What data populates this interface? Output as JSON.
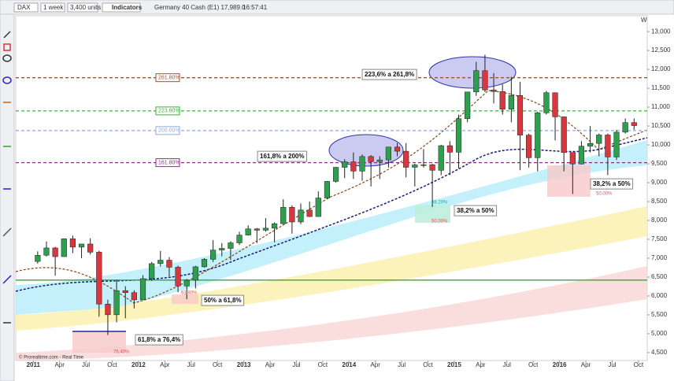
{
  "toolbar": {
    "symbol": "DAX",
    "period": "1 week",
    "units": "3,400 units",
    "indicators": "Indicators",
    "instrument": "Germany 40 Cash (E1) 17,989.0",
    "time": "16:57:41",
    "scale_mode": "W"
  },
  "watermark": "© Prorealtime.com - Real Time",
  "chart_data": {
    "type": "candlestick",
    "x": [
      "2011-01",
      "2011-02",
      "2011-03",
      "2011-04",
      "2011-05",
      "2011-06",
      "2011-07",
      "2011-08",
      "2011-09",
      "2011-10",
      "2011-11",
      "2011-12",
      "2012-01",
      "2012-02",
      "2012-03",
      "2012-04",
      "2012-05",
      "2012-06",
      "2012-07",
      "2012-08",
      "2012-09",
      "2012-10",
      "2012-11",
      "2012-12",
      "2013-01",
      "2013-02",
      "2013-03",
      "2013-04",
      "2013-05",
      "2013-06",
      "2013-07",
      "2013-08",
      "2013-09",
      "2013-10",
      "2013-11",
      "2013-12",
      "2014-01",
      "2014-02",
      "2014-03",
      "2014-04",
      "2014-05",
      "2014-06",
      "2014-07",
      "2014-08",
      "2014-09",
      "2014-10",
      "2014-11",
      "2014-12",
      "2015-01",
      "2015-02",
      "2015-03",
      "2015-04",
      "2015-05",
      "2015-06",
      "2015-07",
      "2015-08",
      "2015-09",
      "2015-10",
      "2015-11",
      "2015-12",
      "2016-01",
      "2016-02",
      "2016-03",
      "2016-04",
      "2016-05",
      "2016-06",
      "2016-07",
      "2016-08",
      "2016-09"
    ],
    "open": [
      6914,
      7077,
      7272,
      7041,
      7514,
      7293,
      7376,
      7159,
      5785,
      5502,
      6141,
      6088,
      5898,
      6458,
      6856,
      6947,
      6761,
      6264,
      6416,
      6772,
      6970,
      7216,
      7260,
      7406,
      7612,
      7776,
      7741,
      7795,
      7914,
      8348,
      7959,
      8276,
      8103,
      8594,
      9033,
      9406,
      9552,
      9306,
      9692,
      9556,
      9603,
      9943,
      9833,
      9407,
      9470,
      9474,
      9327,
      9980,
      9806,
      10694,
      11402,
      11966,
      11454,
      11413,
      10945,
      11309,
      10259,
      9660,
      10850,
      11382,
      10743,
      9798,
      9495,
      9966,
      10039,
      10263,
      9680,
      10337,
      10592
    ],
    "high": [
      7180,
      7441,
      7300,
      7527,
      7600,
      7350,
      7527,
      7200,
      5900,
      6430,
      6260,
      6150,
      6550,
      6900,
      7194,
      7030,
      6800,
      6450,
      6800,
      7000,
      7478,
      7400,
      7450,
      7700,
      7870,
      7800,
      8060,
      7950,
      8560,
      8400,
      8450,
      8500,
      8770,
      9040,
      9420,
      9620,
      9800,
      9750,
      9730,
      9700,
      9950,
      10050,
      10050,
      9500,
      9890,
      9500,
      10000,
      10100,
      10800,
      11400,
      12200,
      12390,
      11900,
      11600,
      11800,
      11670,
      10300,
      10880,
      11430,
      11300,
      10750,
      9800,
      10100,
      10500,
      10300,
      10300,
      10400,
      10700,
      10700
    ],
    "low": [
      6856,
      7046,
      6536,
      7041,
      7132,
      7000,
      7100,
      5450,
      4965,
      5300,
      5410,
      5670,
      5900,
      6400,
      6780,
      6520,
      6100,
      5915,
      6200,
      6750,
      6900,
      7050,
      6950,
      7350,
      7600,
      7400,
      7700,
      7420,
      7900,
      7650,
      7900,
      8090,
      8100,
      8580,
      9000,
      9120,
      9100,
      9050,
      8900,
      9100,
      9400,
      9700,
      9140,
      8900,
      9400,
      8355,
      9200,
      9200,
      9380,
      10600,
      11300,
      11400,
      11100,
      10800,
      10600,
      9330,
      9400,
      9300,
      10800,
      10120,
      9300,
      8700,
      9480,
      9800,
      9700,
      9200,
      9600,
      10300,
      10400
    ],
    "close": [
      7077,
      7272,
      7041,
      7514,
      7293,
      7376,
      7159,
      5785,
      5502,
      6141,
      6088,
      5898,
      6458,
      6856,
      6947,
      6761,
      6264,
      6416,
      6772,
      6970,
      7216,
      7260,
      7406,
      7612,
      7776,
      7741,
      7795,
      7914,
      8348,
      7959,
      8276,
      8103,
      8594,
      9033,
      9406,
      9552,
      9306,
      9692,
      9556,
      9603,
      9943,
      9833,
      9407,
      9470,
      9474,
      9327,
      9980,
      9806,
      10694,
      11402,
      11966,
      11454,
      11413,
      10945,
      11309,
      10259,
      9660,
      10850,
      11382,
      10743,
      9798,
      9495,
      9966,
      10039,
      10263,
      9680,
      10337,
      10592,
      10511
    ],
    "up_color": "#2e9e4f",
    "down_color": "#d9363e",
    "xlim": [
      "2010-11",
      "2016-11"
    ],
    "xticks": [
      {
        "value": "2011-01",
        "label": "2011"
      },
      {
        "value": "2011-04",
        "label": "Apr"
      },
      {
        "value": "2011-07",
        "label": "Jul"
      },
      {
        "value": "2011-10",
        "label": "Oct"
      },
      {
        "value": "2012-01",
        "label": "2012"
      },
      {
        "value": "2012-04",
        "label": "Apr"
      },
      {
        "value": "2012-07",
        "label": "Jul"
      },
      {
        "value": "2012-10",
        "label": "Oct"
      },
      {
        "value": "2013-01",
        "label": "2013"
      },
      {
        "value": "2013-04",
        "label": "Apr"
      },
      {
        "value": "2013-07",
        "label": "Jul"
      },
      {
        "value": "2013-10",
        "label": "Oct"
      },
      {
        "value": "2014-01",
        "label": "2014"
      },
      {
        "value": "2014-04",
        "label": "Apr"
      },
      {
        "value": "2014-07",
        "label": "Jul"
      },
      {
        "value": "2014-10",
        "label": "Oct"
      },
      {
        "value": "2015-01",
        "label": "2015"
      },
      {
        "value": "2015-04",
        "label": "Apr"
      },
      {
        "value": "2015-07",
        "label": "Jul"
      },
      {
        "value": "2015-10",
        "label": "Oct"
      },
      {
        "value": "2016-01",
        "label": "2016"
      },
      {
        "value": "2016-04",
        "label": "Apr"
      },
      {
        "value": "2016-07",
        "label": "Jul"
      },
      {
        "value": "2016-10",
        "label": "Oct"
      }
    ],
    "ylim": [
      4290,
      13420
    ],
    "yticks": [
      {
        "value": 4500,
        "label": "4,500"
      },
      {
        "value": 5000,
        "label": "5,000"
      },
      {
        "value": 5500,
        "label": "5,500"
      },
      {
        "value": 6000,
        "label": "6,000"
      },
      {
        "value": 6500,
        "label": "6,500"
      },
      {
        "value": 7000,
        "label": "7,000"
      },
      {
        "value": 7500,
        "label": "7,500"
      },
      {
        "value": 8000,
        "label": "8,000"
      },
      {
        "value": 8500,
        "label": "8,500"
      },
      {
        "value": 9000,
        "label": "9,000"
      },
      {
        "value": 9500,
        "label": "9,500"
      },
      {
        "value": 10000,
        "label": "10,000"
      },
      {
        "value": 10500,
        "label": "10,500"
      },
      {
        "value": 11000,
        "label": "11,000"
      },
      {
        "value": 11500,
        "label": "11,500"
      },
      {
        "value": 12000,
        "label": "12,000"
      },
      {
        "value": 12500,
        "label": "12,500"
      },
      {
        "value": 13000,
        "label": "13,000"
      }
    ],
    "grid": false,
    "levels": [
      {
        "value": 11780,
        "label": "261.80%",
        "color": "#a0522d"
      },
      {
        "value": 10900,
        "label": "223.60%",
        "color": "#2fb82f"
      },
      {
        "value": 10380,
        "label": "200.00%",
        "color": "#8fa8e0"
      },
      {
        "value": 9530,
        "label": "161.80%",
        "color": "#8b2f8b"
      },
      {
        "value": 6420,
        "color": "#3aa63a"
      }
    ],
    "annotations": [
      "223,6% a 261,8%",
      "161,8% a 200%",
      "38,2% a 50%",
      "38,2% a 50%",
      "50% a 61,8%",
      "61,8% a 76,4%"
    ],
    "retracement_labels": [
      "38.20%",
      "50.00%",
      "50.00%",
      "61.80%",
      "76.40%"
    ]
  }
}
